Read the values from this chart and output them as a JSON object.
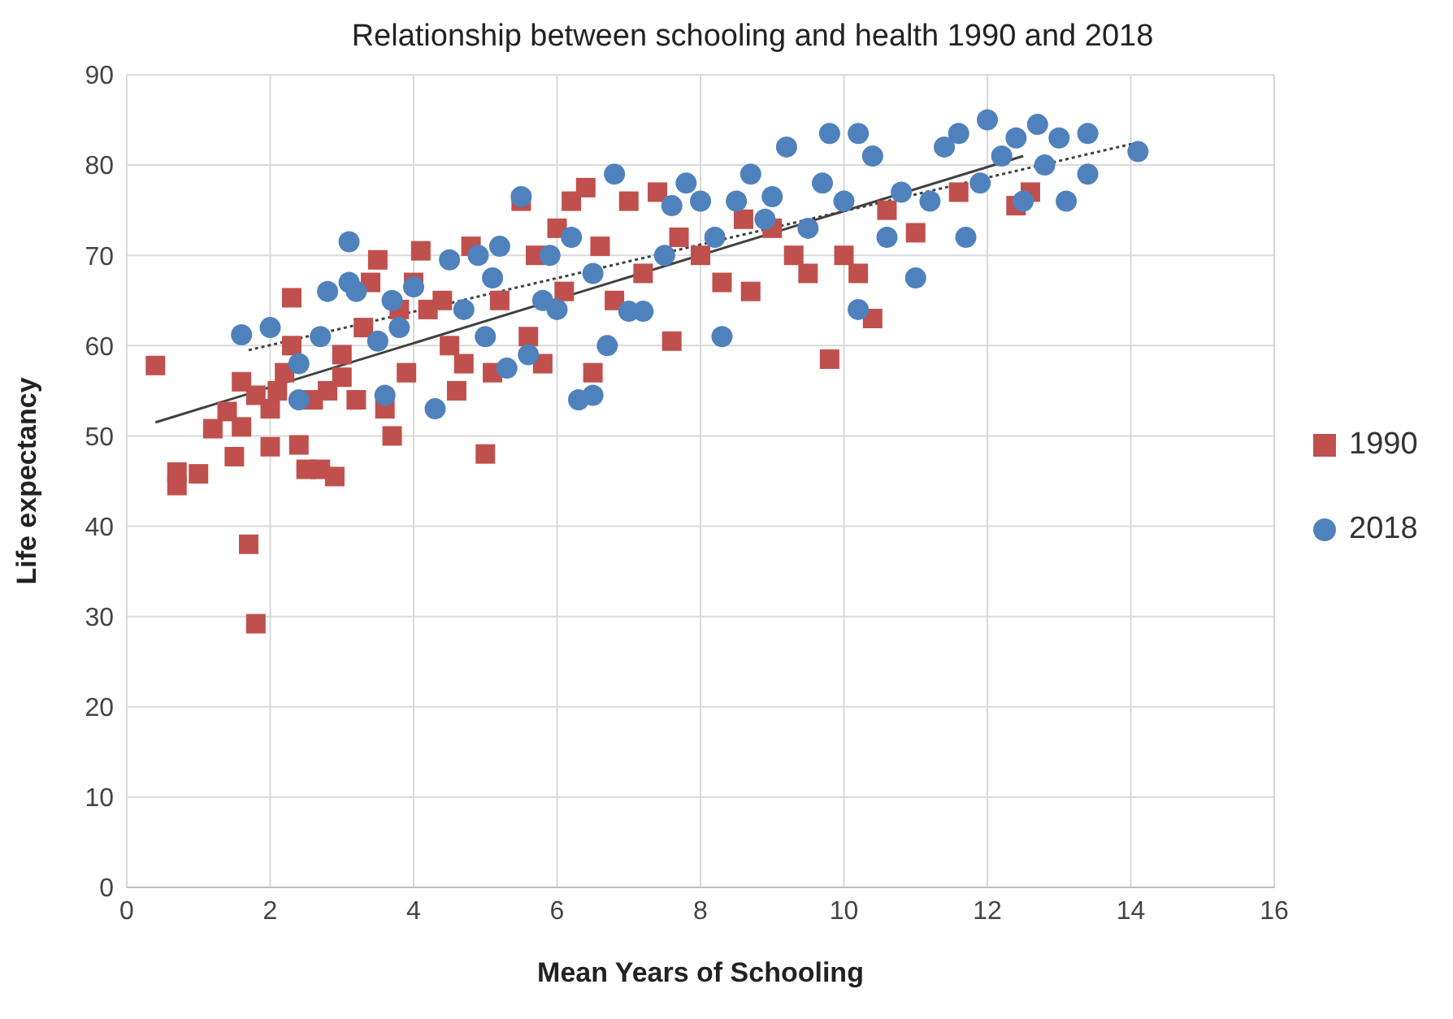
{
  "chart_data": {
    "type": "scatter",
    "title": "Relationship between schooling and health 1990 and 2018",
    "xlabel": "Mean Years of Schooling",
    "ylabel": "Life expectancy",
    "xlim": [
      0,
      16
    ],
    "xticks": [
      0,
      2,
      4,
      6,
      8,
      10,
      12,
      14,
      16
    ],
    "ylim": [
      0,
      90
    ],
    "yticks": [
      0,
      10,
      20,
      30,
      40,
      50,
      60,
      70,
      80,
      90
    ],
    "grid": true,
    "legend": "right",
    "series": [
      {
        "name": "1990",
        "color": "#c0504d",
        "marker": "square",
        "x": [
          0.4,
          0.7,
          0.7,
          1.0,
          1.2,
          1.4,
          1.5,
          1.6,
          1.6,
          1.7,
          1.8,
          1.8,
          2.0,
          2.0,
          2.1,
          2.2,
          2.3,
          2.3,
          2.4,
          2.5,
          2.6,
          2.7,
          2.8,
          2.9,
          3.0,
          3.0,
          3.2,
          3.3,
          3.4,
          3.5,
          3.6,
          3.7,
          3.8,
          3.9,
          4.0,
          4.1,
          4.2,
          4.4,
          4.5,
          4.6,
          4.7,
          4.8,
          5.0,
          5.1,
          5.2,
          5.5,
          5.6,
          5.7,
          5.8,
          6.0,
          6.1,
          6.2,
          6.4,
          6.5,
          6.6,
          6.8,
          7.0,
          7.2,
          7.4,
          7.6,
          7.7,
          8.0,
          8.3,
          8.6,
          8.7,
          9.0,
          9.3,
          9.5,
          9.8,
          10.0,
          10.2,
          10.4,
          10.6,
          11.0,
          11.6,
          12.4,
          12.6
        ],
        "values": [
          57.8,
          44.5,
          46,
          45.8,
          50.8,
          52.7,
          47.7,
          51,
          56,
          38,
          29.2,
          54.5,
          48.8,
          53,
          55,
          57,
          60,
          65.3,
          49,
          46.3,
          54,
          46.3,
          55,
          45.5,
          56.5,
          59,
          54,
          62,
          67,
          69.5,
          53,
          50,
          64,
          57,
          67,
          70.5,
          64,
          65,
          60,
          55,
          58,
          71,
          48,
          57,
          65,
          76,
          61,
          70,
          58,
          73,
          66,
          76,
          77.5,
          57,
          71,
          65,
          76,
          68,
          77,
          60.5,
          72,
          70,
          67,
          74,
          66,
          73,
          70,
          68,
          58.5,
          70,
          68,
          63,
          75,
          72.5,
          77,
          75.5,
          77
        ]
      },
      {
        "name": "2018",
        "color": "#4f81bd",
        "marker": "circle",
        "x": [
          1.6,
          2.0,
          2.4,
          2.4,
          2.8,
          2.7,
          3.1,
          3.1,
          3.2,
          3.5,
          3.6,
          3.7,
          3.8,
          4.0,
          4.3,
          4.5,
          4.7,
          4.9,
          5.0,
          5.1,
          5.2,
          5.3,
          5.5,
          5.6,
          5.8,
          5.9,
          6.0,
          6.2,
          6.3,
          6.5,
          6.5,
          6.7,
          6.8,
          7.0,
          7.2,
          7.5,
          7.6,
          7.8,
          8.0,
          8.2,
          8.3,
          8.5,
          8.7,
          8.9,
          9.0,
          9.2,
          9.5,
          9.7,
          9.8,
          10.0,
          10.2,
          10.2,
          10.4,
          10.6,
          10.8,
          11.0,
          11.2,
          11.4,
          11.6,
          11.7,
          11.9,
          12.0,
          12.2,
          12.4,
          12.5,
          12.7,
          12.8,
          13.0,
          13.1,
          13.4,
          13.4,
          14.1
        ],
        "values": [
          61.2,
          62,
          54,
          58,
          66,
          61,
          71.5,
          67,
          66,
          60.5,
          54.5,
          65,
          62,
          66.5,
          53,
          69.5,
          64,
          70,
          61,
          67.5,
          71,
          57.5,
          76.5,
          59,
          65,
          70,
          64,
          72,
          54,
          54.5,
          68,
          60,
          79,
          63.8,
          63.8,
          70,
          75.5,
          78,
          76,
          72,
          61,
          76,
          79,
          74,
          76.5,
          82,
          73,
          78,
          83.5,
          76,
          64,
          83.5,
          81,
          72,
          77,
          67.5,
          76,
          82,
          83.5,
          72,
          78,
          85,
          81,
          83,
          76,
          84.5,
          80,
          83,
          76,
          83.5,
          79,
          81.5
        ]
      },
      {
        "type": "line",
        "color": "#404040",
        "line_style": "solid",
        "marker": "none",
        "x": [
          0.4,
          12.5
        ],
        "values": [
          51.5,
          81
        ]
      },
      {
        "type": "line",
        "color": "#404040",
        "line_style": "dotted",
        "marker": "none",
        "x": [
          1.7,
          14.1
        ],
        "values": [
          59.5,
          82.5
        ]
      }
    ]
  }
}
